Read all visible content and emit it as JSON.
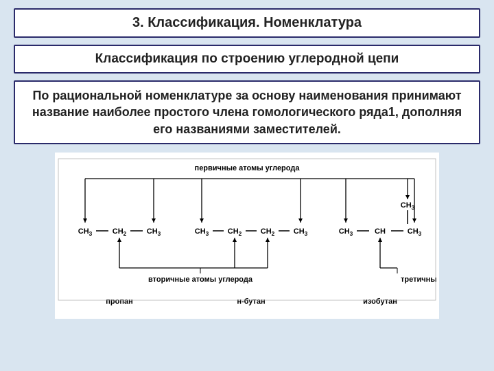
{
  "title_box": "3. Классификация. Номенклатура",
  "subtitle_box": "Классификация по строению углеродной цепи",
  "desc_box": "По рациональной номенклатуре за основу наименования принимают название наиболее простого члена гомологического ряда1, дополняя его названиями заместителей.",
  "diagram": {
    "top_label": "первичные атомы углерода",
    "mid_label": "вторичные атомы углерода",
    "right_label": "третичный атом углерода",
    "molecules": {
      "propane": {
        "groups": [
          "CH₃",
          "CH₂",
          "CH₃"
        ],
        "name": "пропан"
      },
      "nbutane": {
        "groups": [
          "CH₃",
          "CH₂",
          "CH₂",
          "CH₃"
        ],
        "name": "н-бутан"
      },
      "isobutane": {
        "groups": [
          "CH₃",
          "CH",
          "CH₃"
        ],
        "branch": "CH₃",
        "name": "изобутан"
      }
    },
    "colors": {
      "line": "#000000",
      "text": "#000000",
      "bg": "#ffffff"
    },
    "font": {
      "formula_size": 11,
      "label_size": 11,
      "name_size": 11,
      "weight_bold": "bold"
    }
  }
}
